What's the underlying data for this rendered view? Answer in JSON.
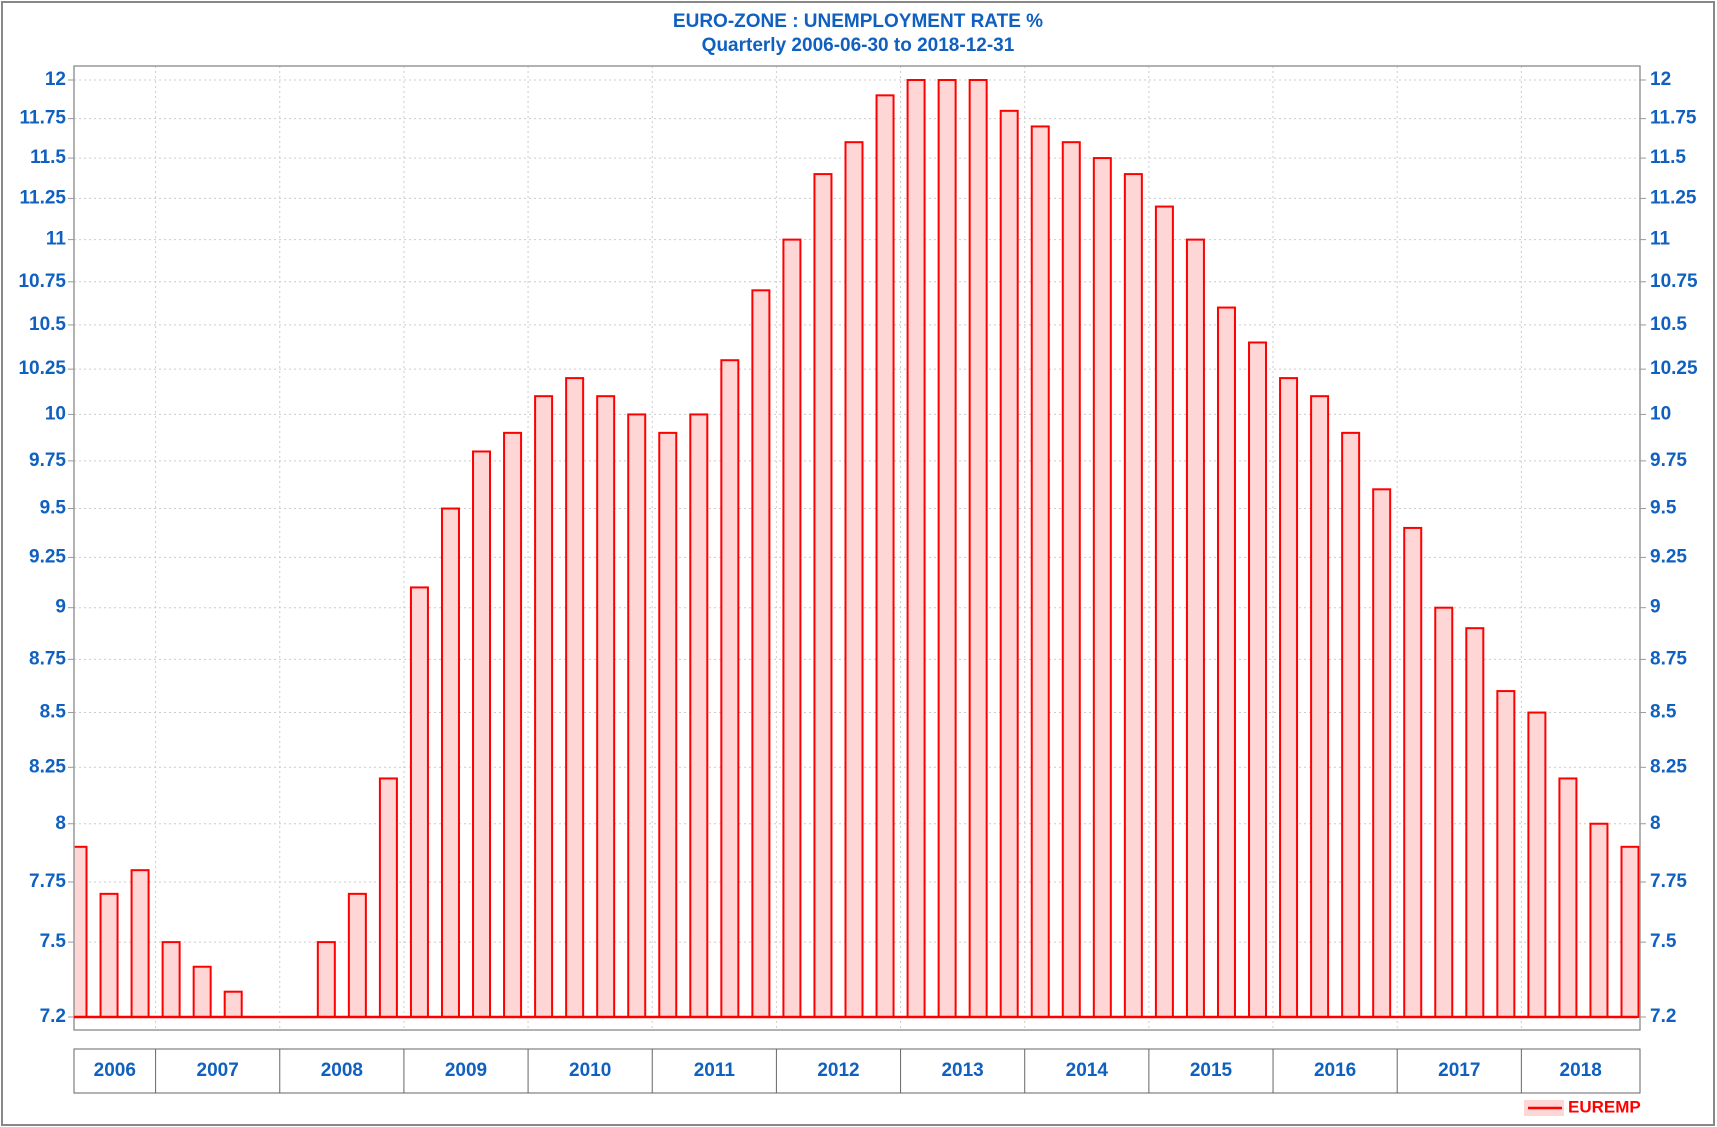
{
  "chart_data": {
    "type": "bar",
    "title": "EURO-ZONE : UNEMPLOYMENT RATE %",
    "subtitle": "Quarterly 2006-06-30 to 2018-12-31",
    "categories": [
      null,
      null,
      null,
      null,
      null,
      null,
      null,
      null,
      null,
      null,
      null,
      null,
      null,
      null,
      null,
      null,
      null,
      null,
      null,
      null,
      null,
      null,
      null,
      null,
      null,
      null,
      null,
      null,
      null,
      null,
      null,
      null,
      null,
      null,
      null,
      null,
      null,
      null,
      null,
      null,
      null,
      null,
      null,
      null,
      null,
      null,
      null,
      null,
      null,
      null,
      null
    ],
    "x_groups": [
      {
        "label": "2006",
        "count": 3
      },
      {
        "label": "2007",
        "count": 4
      },
      {
        "label": "2008",
        "count": 4
      },
      {
        "label": "2009",
        "count": 4
      },
      {
        "label": "2010",
        "count": 4
      },
      {
        "label": "2011",
        "count": 4
      },
      {
        "label": "2012",
        "count": 4
      },
      {
        "label": "2013",
        "count": 4
      },
      {
        "label": "2014",
        "count": 4
      },
      {
        "label": "2015",
        "count": 4
      },
      {
        "label": "2016",
        "count": 4
      },
      {
        "label": "2017",
        "count": 4
      },
      {
        "label": "2018",
        "count": 4
      }
    ],
    "series": [
      {
        "name": "EUREMP",
        "color": "#ff0000",
        "fill": "#ffd6d6",
        "values": [
          7.9,
          7.7,
          7.8,
          7.5,
          7.4,
          7.3,
          7.2,
          7.2,
          7.5,
          7.7,
          8.2,
          9.1,
          9.5,
          9.8,
          9.9,
          10.1,
          10.2,
          10.1,
          10.0,
          9.9,
          10.0,
          10.3,
          10.7,
          11.0,
          11.4,
          11.6,
          11.9,
          12.0,
          12.0,
          12.0,
          11.8,
          11.7,
          11.6,
          11.5,
          11.4,
          11.2,
          11.0,
          10.6,
          10.4,
          10.2,
          10.1,
          9.9,
          9.6,
          9.4,
          9.0,
          8.9,
          8.6,
          8.5,
          8.2,
          8.0,
          7.9
        ]
      }
    ],
    "ylim": [
      7.2,
      12
    ],
    "log_scale": true,
    "yticks": [
      7.2,
      7.5,
      7.75,
      8,
      8.25,
      8.5,
      8.75,
      9,
      9.25,
      9.5,
      9.75,
      10,
      10.25,
      10.5,
      10.75,
      11,
      11.25,
      11.5,
      11.75,
      12
    ],
    "grid": true,
    "legend": "bottom-right"
  }
}
